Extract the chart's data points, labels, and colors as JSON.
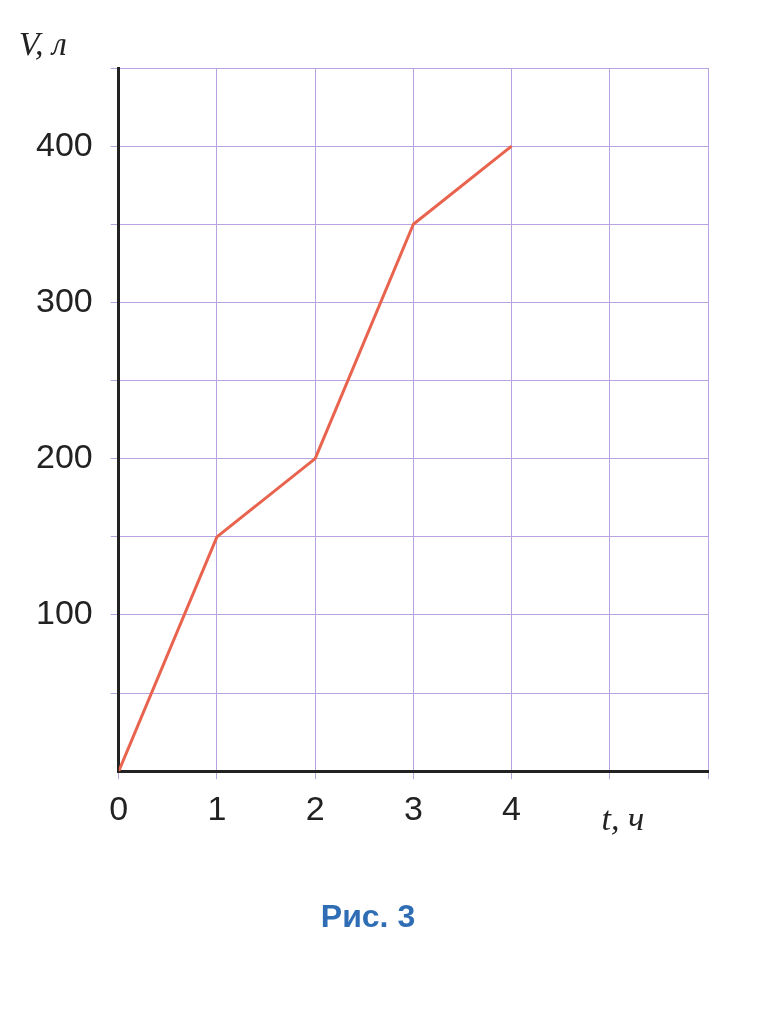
{
  "chart_data": {
    "type": "line",
    "xlabel": "t, ч",
    "ylabel": "V, л",
    "x": [
      0,
      1,
      2,
      3,
      4
    ],
    "series": [
      {
        "color": "#e8644f",
        "values": [
          0,
          150,
          200,
          350,
          400
        ]
      }
    ],
    "xlim": [
      0,
      6
    ],
    "xticks": [
      0,
      1,
      2,
      3,
      4,
      {
        "value": 5,
        "label": null
      },
      {
        "value": 6,
        "label": null
      }
    ],
    "ylim": [
      0,
      450
    ],
    "yticks": [
      {
        "value": 50,
        "label": null
      },
      100,
      {
        "value": 150,
        "label": null
      },
      200,
      {
        "value": 250,
        "label": null
      },
      300,
      {
        "value": 350,
        "label": null
      },
      400,
      {
        "value": 450,
        "label": null
      }
    ],
    "grid": true,
    "legend": false,
    "marker": "none",
    "line_style": "solid",
    "annotations": [
      "Рис. 3"
    ]
  }
}
